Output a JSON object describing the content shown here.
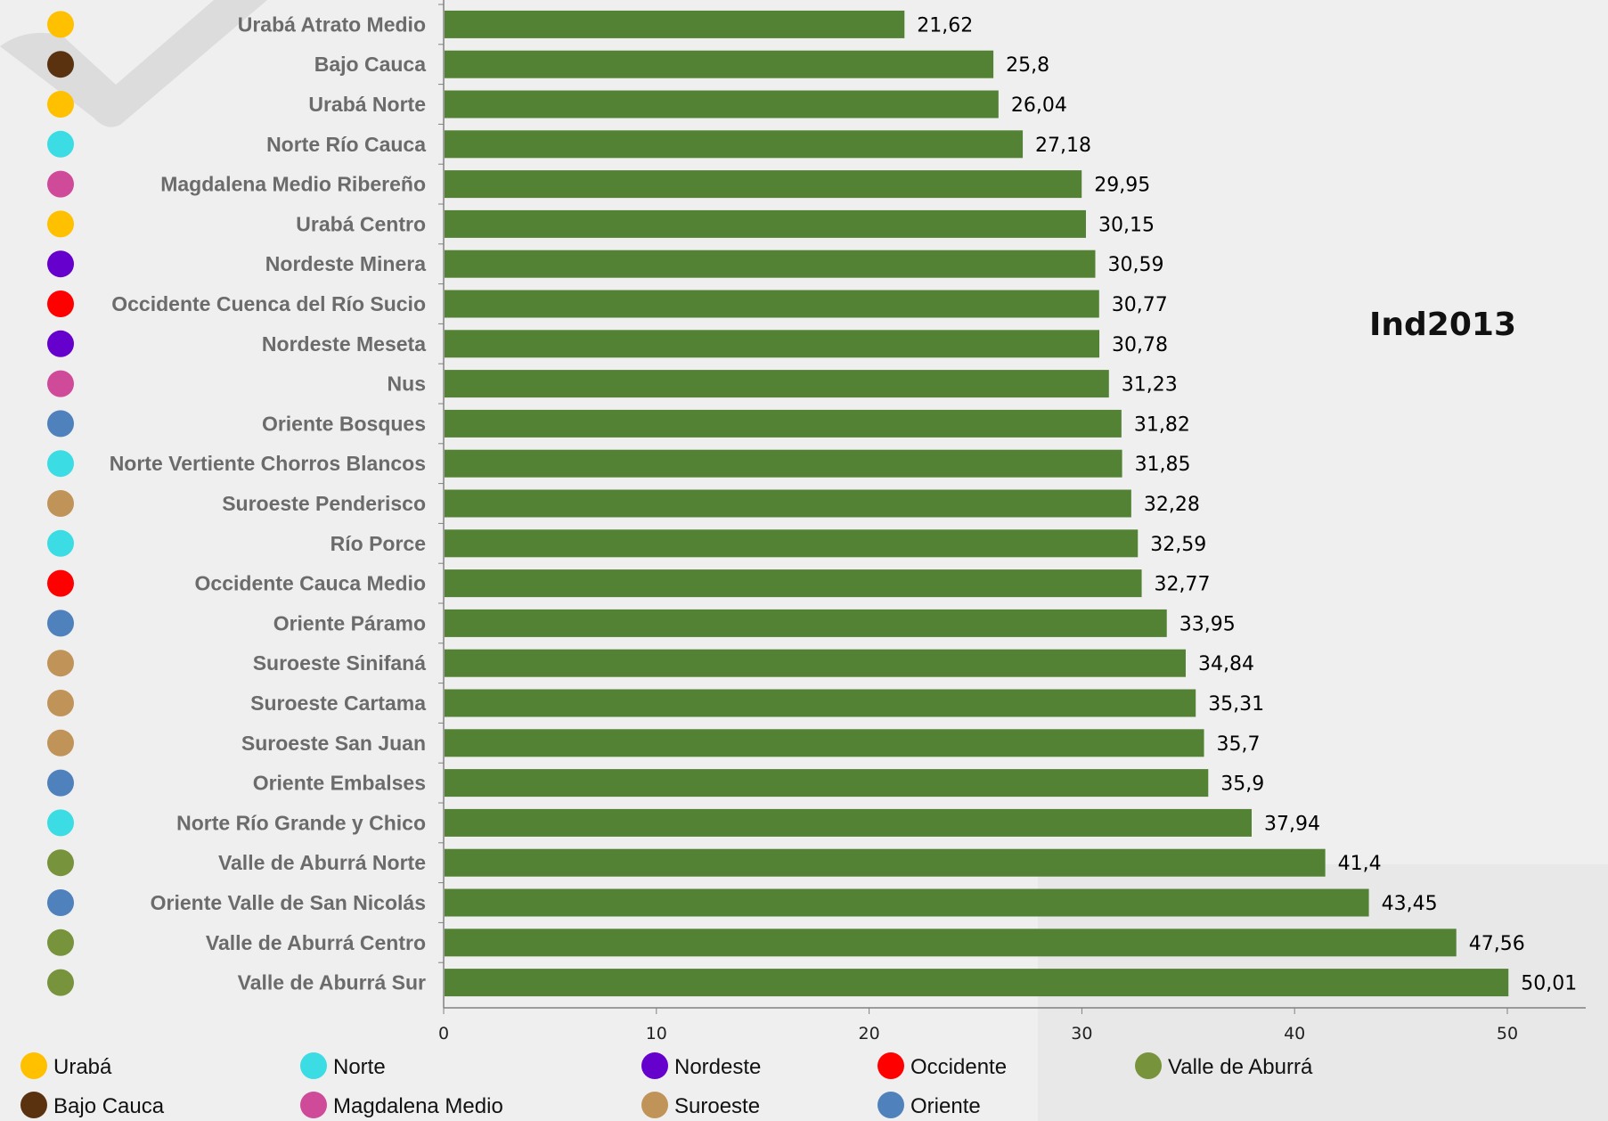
{
  "chart_data": {
    "type": "bar",
    "orientation": "horizontal",
    "title": "Ind2013",
    "bar_color": "#548235",
    "categories": [
      "Urabá Atrato Medio",
      "Bajo Cauca",
      "Urabá Norte",
      "Norte Río Cauca",
      "Magdalena Medio Ribereño",
      "Urabá Centro",
      "Nordeste Minera",
      "Occidente Cuenca del Río Sucio",
      "Nordeste Meseta",
      "Nus",
      "Oriente Bosques",
      "Norte Vertiente Chorros Blancos",
      "Suroeste Penderisco",
      "Río Porce",
      "Occidente Cauca Medio",
      "Oriente Páramo",
      "Suroeste Sinifaná",
      "Suroeste Cartama",
      "Suroeste San Juan",
      "Oriente Embalses",
      "Norte Río Grande y Chico",
      "Valle de Aburrá Norte",
      "Oriente Valle de San Nicolás",
      "Valle de Aburrá Centro",
      "Valle de Aburrá Sur"
    ],
    "values": [
      21.62,
      25.8,
      26.04,
      27.18,
      29.95,
      30.15,
      30.59,
      30.77,
      30.78,
      31.23,
      31.82,
      31.85,
      32.28,
      32.59,
      32.77,
      33.95,
      34.84,
      35.31,
      35.7,
      35.9,
      37.94,
      41.4,
      43.45,
      47.56,
      50.01
    ],
    "value_labels": [
      "21,62",
      "25,8",
      "26,04",
      "27,18",
      "29,95",
      "30,15",
      "30,59",
      "30,77",
      "30,78",
      "31,23",
      "31,82",
      "31,85",
      "32,28",
      "32,59",
      "32,77",
      "33,95",
      "34,84",
      "35,31",
      "35,7",
      "35,9",
      "37,94",
      "41,4",
      "43,45",
      "47,56",
      "50,01"
    ],
    "category_regions": [
      "Urabá",
      "Bajo Cauca",
      "Urabá",
      "Norte",
      "Magdalena Medio",
      "Urabá",
      "Nordeste",
      "Occidente",
      "Nordeste",
      "Magdalena Medio",
      "Oriente",
      "Norte",
      "Suroeste",
      "Norte",
      "Occidente",
      "Oriente",
      "Suroeste",
      "Suroeste",
      "Suroeste",
      "Oriente",
      "Norte",
      "Valle de Aburrá",
      "Oriente",
      "Valle de Aburrá",
      "Valle de Aburrá"
    ],
    "xlim": [
      0,
      54
    ],
    "xticks": [
      0,
      10,
      20,
      30,
      40,
      50
    ],
    "grid": false,
    "legend": {
      "placement": "bottom",
      "items": [
        {
          "label": "Urabá",
          "color": "#FFC000"
        },
        {
          "label": "Norte",
          "color": "#3CDCE4"
        },
        {
          "label": "Nordeste",
          "color": "#6600CC"
        },
        {
          "label": "Occidente",
          "color": "#FF0000"
        },
        {
          "label": "Valle de Aburrá",
          "color": "#77933C"
        },
        {
          "label": "Bajo Cauca",
          "color": "#5A3210"
        },
        {
          "label": "Magdalena Medio",
          "color": "#D04A9A"
        },
        {
          "label": "Suroeste",
          "color": "#C09458"
        },
        {
          "label": "Oriente",
          "color": "#4F81BD"
        }
      ]
    }
  }
}
